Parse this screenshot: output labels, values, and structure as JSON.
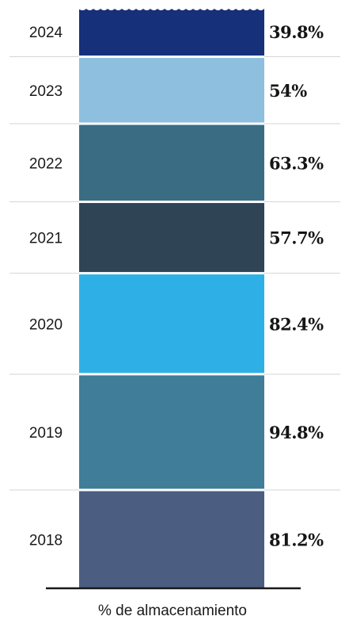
{
  "chart_data": {
    "type": "bar",
    "orientation": "stacked-column",
    "xlabel": "% de almacenamiento",
    "categories": [
      "2018",
      "2019",
      "2020",
      "2021",
      "2022",
      "2023",
      "2024"
    ],
    "values": [
      81.2,
      94.8,
      82.4,
      57.7,
      63.3,
      54,
      39.8
    ],
    "value_labels": [
      "81.2%",
      "94.8%",
      "82.4%",
      "57.7%",
      "63.3%",
      "54%",
      "39.8%"
    ],
    "colors": [
      "#4b5e82",
      "#3f7d99",
      "#2eb0e6",
      "#2f4556",
      "#3a6d84",
      "#8ebfde",
      "#16307a"
    ],
    "label_colors": [
      "#151515",
      "#151515",
      "#151515",
      "#151515",
      "#151515",
      "#151515",
      "#c8202f"
    ]
  }
}
